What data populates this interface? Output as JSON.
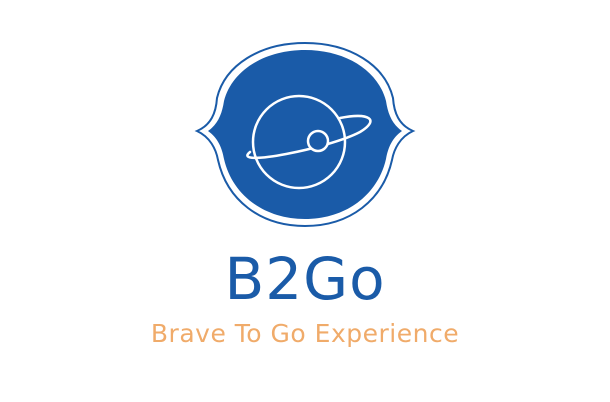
{
  "brand": {
    "name": "B2Go",
    "tagline": "Brave To Go Experience"
  },
  "colors": {
    "primary": "#1a5ba8",
    "accent": "#f0ab6a",
    "background": "#ffffff"
  },
  "icons": {
    "emblem": "planet-ring-icon"
  }
}
